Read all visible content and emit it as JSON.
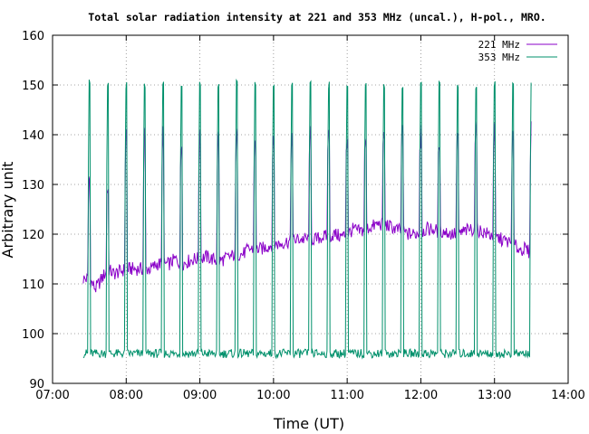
{
  "chart_data": {
    "type": "line",
    "title": "Total solar radiation intensity at 221 and 353 MHz (uncal.), H-pol., MRO.",
    "xlabel": "Time (UT)",
    "ylabel": "Arbitrary unit",
    "xlim": [
      "07:00",
      "14:00"
    ],
    "ylim": [
      90,
      160
    ],
    "xticks": [
      "07:00",
      "08:00",
      "09:00",
      "10:00",
      "11:00",
      "12:00",
      "13:00",
      "14:00"
    ],
    "yticks": [
      90,
      100,
      110,
      120,
      130,
      140,
      150,
      160
    ],
    "grid": true,
    "legend_position": "top-right",
    "colors": {
      "221 MHz": "#8a00c8",
      "353 MHz": "#00906b"
    },
    "series": [
      {
        "name": "221 MHz",
        "time": [
          "07:25",
          "07:30",
          "07:35",
          "07:40",
          "07:45",
          "07:50",
          "07:55",
          "08:00",
          "08:05",
          "08:10",
          "08:15",
          "08:20",
          "08:25",
          "08:30",
          "08:35",
          "08:40",
          "08:45",
          "08:50",
          "08:55",
          "09:00",
          "09:05",
          "09:10",
          "09:15",
          "09:20",
          "09:25",
          "09:30",
          "09:35",
          "09:40",
          "09:45",
          "09:50",
          "09:55",
          "10:00",
          "10:05",
          "10:10",
          "10:15",
          "10:20",
          "10:25",
          "10:30",
          "10:35",
          "10:40",
          "10:45",
          "10:50",
          "10:55",
          "11:00",
          "11:05",
          "11:10",
          "11:15",
          "11:20",
          "11:25",
          "11:30",
          "11:35",
          "11:40",
          "11:45",
          "11:50",
          "11:55",
          "12:00",
          "12:05",
          "12:10",
          "12:15",
          "12:20",
          "12:25",
          "12:30",
          "12:35",
          "12:40",
          "12:45",
          "12:50",
          "12:55",
          "13:00",
          "13:05",
          "13:10",
          "13:15",
          "13:20",
          "13:25",
          "13:30"
        ],
        "baseline": [
          111,
          111,
          109,
          111,
          113,
          112,
          112.5,
          113,
          113,
          113,
          113,
          113,
          114,
          114,
          114,
          115,
          114,
          114.5,
          115,
          115,
          115.5,
          115,
          114.5,
          115,
          115.5,
          116,
          116,
          117,
          117,
          117,
          117.5,
          118,
          118,
          118.5,
          118.5,
          119,
          119,
          119,
          119,
          119.5,
          119.5,
          120,
          119.5,
          120,
          121,
          120.5,
          121,
          121.5,
          122,
          122,
          121.5,
          121,
          120.5,
          120,
          120,
          120.5,
          121,
          121,
          120.5,
          120.5,
          120,
          120,
          120.5,
          121,
          121,
          120.5,
          120,
          119.5,
          119,
          118.5,
          118,
          117,
          117,
          116
        ],
        "spike_times": [
          "07:30",
          "07:45",
          "08:00",
          "08:15",
          "08:30",
          "08:45",
          "09:00",
          "09:15",
          "09:30",
          "09:45",
          "10:00",
          "10:15",
          "10:30",
          "10:45",
          "11:00",
          "11:15",
          "11:30",
          "11:45",
          "12:00",
          "12:15",
          "12:30",
          "12:45",
          "13:00",
          "13:15",
          "13:30"
        ],
        "spike_peaks": [
          129,
          129,
          140,
          140,
          140,
          140,
          140,
          140,
          140,
          140,
          140,
          140,
          140,
          140,
          140,
          140,
          140,
          140,
          140,
          140,
          140,
          140,
          140,
          140,
          140
        ]
      },
      {
        "name": "353 MHz",
        "time": [
          "07:25",
          "07:30",
          "07:35",
          "07:40",
          "07:45",
          "07:50",
          "07:55",
          "08:00",
          "08:05",
          "08:10",
          "08:15",
          "08:20",
          "08:25",
          "08:30",
          "08:35",
          "08:40",
          "08:45",
          "08:50",
          "08:55",
          "09:00",
          "09:05",
          "09:10",
          "09:15",
          "09:20",
          "09:25",
          "09:30",
          "09:35",
          "09:40",
          "09:45",
          "09:50",
          "09:55",
          "10:00",
          "10:05",
          "10:10",
          "10:15",
          "10:20",
          "10:25",
          "10:30",
          "10:35",
          "10:40",
          "10:45",
          "10:50",
          "10:55",
          "11:00",
          "11:05",
          "11:10",
          "11:15",
          "11:20",
          "11:25",
          "11:30",
          "11:35",
          "11:40",
          "11:45",
          "11:50",
          "11:55",
          "12:00",
          "12:05",
          "12:10",
          "12:15",
          "12:20",
          "12:25",
          "12:30",
          "12:35",
          "12:40",
          "12:45",
          "12:50",
          "12:55",
          "13:00",
          "13:05",
          "13:10",
          "13:15",
          "13:20",
          "13:25",
          "13:30"
        ],
        "baseline": [
          96,
          96,
          96,
          96,
          96,
          96,
          96,
          96,
          96,
          96,
          96,
          96,
          96,
          96,
          96,
          96,
          96,
          96,
          96,
          96,
          96,
          96,
          96,
          96,
          96,
          96,
          96,
          96,
          96,
          96,
          96,
          96,
          96,
          96,
          96,
          96,
          96,
          96,
          96,
          96,
          96,
          96,
          96,
          96,
          96,
          96,
          96,
          96,
          96,
          96,
          96,
          96,
          96,
          96,
          96,
          96,
          96,
          96,
          96,
          96,
          96,
          96,
          96,
          96,
          96,
          96,
          96,
          96,
          96,
          96,
          96,
          96,
          96,
          96
        ],
        "spike_times": [
          "07:30",
          "07:45",
          "08:00",
          "08:15",
          "08:30",
          "08:45",
          "09:00",
          "09:15",
          "09:30",
          "09:45",
          "10:00",
          "10:15",
          "10:30",
          "10:45",
          "11:00",
          "11:15",
          "11:30",
          "11:45",
          "12:00",
          "12:15",
          "12:30",
          "12:45",
          "13:00",
          "13:15",
          "13:30"
        ],
        "spike_peaks": [
          151,
          150,
          150,
          150,
          150,
          150,
          150,
          150,
          151,
          150,
          150,
          150,
          150,
          150,
          150,
          150,
          150,
          150,
          150,
          150,
          150,
          150,
          150,
          150,
          151
        ]
      }
    ]
  }
}
